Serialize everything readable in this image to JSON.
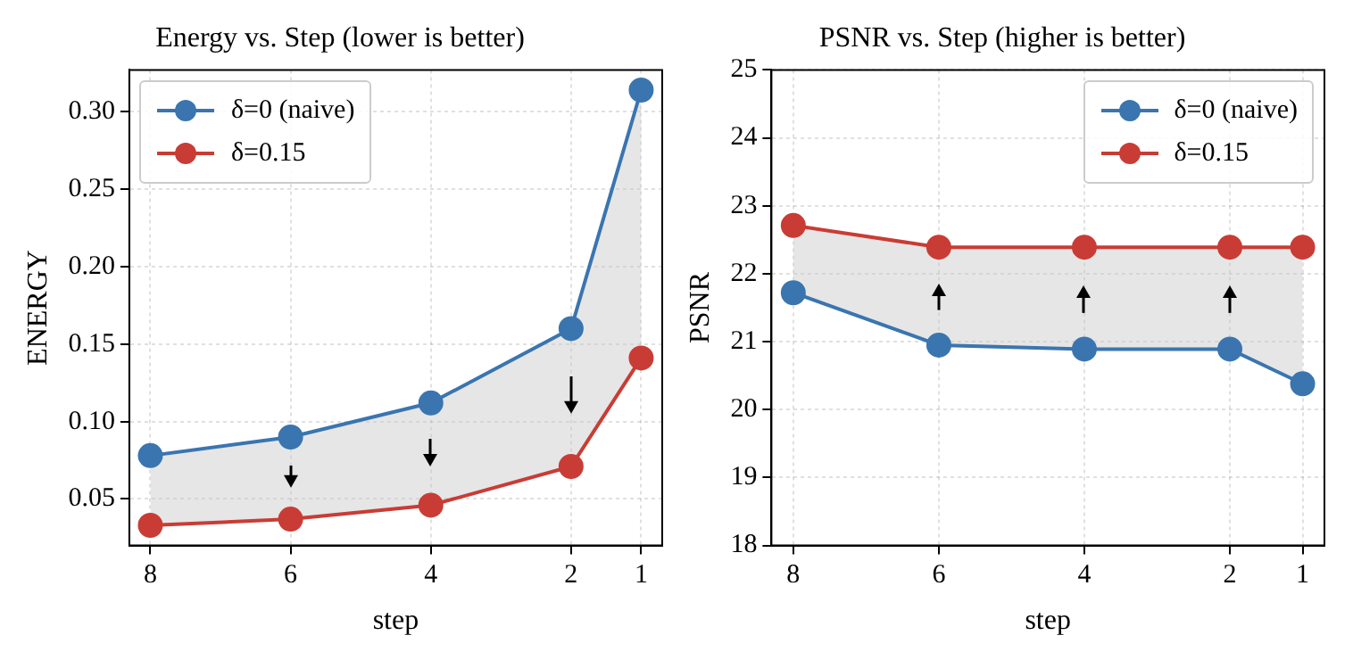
{
  "chart_data": [
    {
      "type": "line",
      "title": "Energy vs. Step (lower is better)",
      "xlabel": "step",
      "ylabel": "ENERGY",
      "x": [
        8,
        6,
        4,
        2,
        1
      ],
      "xlim": [
        8.3,
        0.7
      ],
      "xticks": [
        8,
        6,
        4,
        2,
        1
      ],
      "ylim": [
        0.02,
        0.327
      ],
      "yticks": [
        0.05,
        {
          "value": 0.1,
          "label": "0.10"
        },
        0.15,
        {
          "value": 0.2,
          "label": "0.20"
        },
        0.25,
        {
          "value": 0.3,
          "label": "0.30"
        }
      ],
      "grid": true,
      "legend": "top left",
      "marker": "circle",
      "line_style": "solid",
      "series": [
        {
          "name": "δ=0 (naive)",
          "color": "#3a75b0",
          "values": [
            0.078,
            0.09,
            0.112,
            0.16,
            0.314
          ],
          "lower": [
            0.033,
            0.037,
            0.046,
            0.071,
            0.141
          ],
          "upper": [
            0.078,
            0.09,
            0.112,
            0.16,
            0.314
          ]
        },
        {
          "name": "δ=0.15",
          "color": "#c93c35",
          "values": [
            0.033,
            0.037,
            0.046,
            0.071,
            0.141
          ]
        }
      ]
    },
    {
      "type": "line",
      "title": "PSNR vs. Step (higher is better)",
      "xlabel": "step",
      "ylabel": "PSNR",
      "x": [
        8,
        6,
        4,
        2,
        1
      ],
      "xlim": [
        8.3,
        0.7
      ],
      "xticks": [
        8,
        6,
        4,
        2,
        1
      ],
      "ylim": [
        18,
        25
      ],
      "yticks": [
        18,
        19,
        20,
        21,
        22,
        23,
        24,
        25
      ],
      "grid": true,
      "legend": "top right",
      "marker": "circle",
      "line_style": "solid",
      "series": [
        {
          "name": "δ=0 (naive)",
          "color": "#3a75b0",
          "values": [
            21.72,
            20.95,
            20.89,
            20.89,
            20.38
          ],
          "lower": [
            21.72,
            20.95,
            20.89,
            20.89,
            20.38
          ],
          "upper": [
            22.71,
            22.39,
            22.39,
            22.39,
            22.39
          ]
        },
        {
          "name": "δ=0.15",
          "color": "#c93c35",
          "values": [
            22.71,
            22.39,
            22.39,
            22.39,
            22.39
          ]
        }
      ]
    }
  ]
}
